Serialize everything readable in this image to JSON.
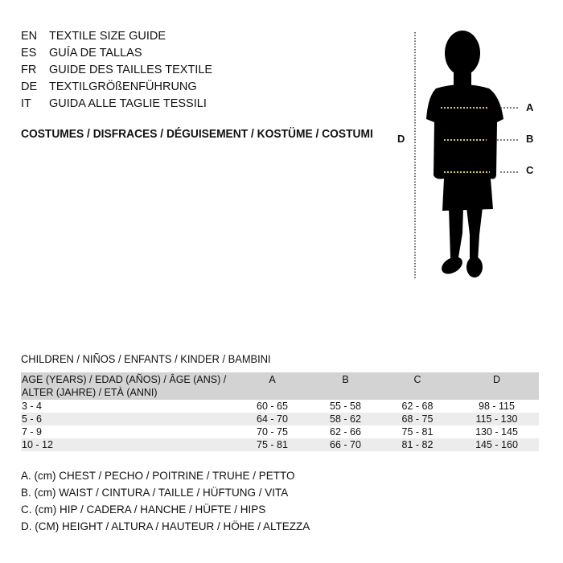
{
  "header": {
    "lines": [
      {
        "lang": "EN",
        "title": "TEXTILE SIZE GUIDE"
      },
      {
        "lang": "ES",
        "title": "GUÍA DE TALLAS"
      },
      {
        "lang": "FR",
        "title": "GUIDE DES TAILLES TEXTILE"
      },
      {
        "lang": "DE",
        "title": "TEXTILGRÖßENFÜHRUNG"
      },
      {
        "lang": "IT",
        "title": "GUIDA ALLE TAGLIE TESSILI"
      }
    ],
    "category": "COSTUMES / DISFRACES / DÉGUISEMENT / KOSTÜME / COSTUMI"
  },
  "figure": {
    "labels": {
      "a": "A",
      "b": "B",
      "c": "C",
      "d": "D"
    },
    "measure_color": "#e8d200"
  },
  "table": {
    "title": "CHILDREN / NIÑOS / ENFANTS / KINDER / BAMBINI",
    "header": {
      "age_line1": "AGE (YEARS) / EDAD (AÑOS) / ÂGE (ANS) /",
      "age_line2": "ALTER (JAHRE) / ETÀ (ANNI)",
      "a": "A",
      "b": "B",
      "c": "C",
      "d": "D"
    },
    "rows": [
      {
        "age": "3 - 4",
        "a": "60 - 65",
        "b": "55 - 58",
        "c": "62 - 68",
        "d": "98 - 115"
      },
      {
        "age": "5 - 6",
        "a": "64 - 70",
        "b": "58 - 62",
        "c": "68 - 75",
        "d": "115 - 130"
      },
      {
        "age": "7 - 9",
        "a": "70 - 75",
        "b": "62 - 66",
        "c": "75 - 81",
        "d": "130 - 145"
      },
      {
        "age": "10 - 12",
        "a": "75 - 81",
        "b": "66 - 70",
        "c": "81 - 82",
        "d": "145 - 160"
      }
    ]
  },
  "legend": [
    "A. (cm) CHEST / PECHO / POITRINE / TRUHE / PETTO",
    "B. (cm) WAIST / CINTURA / TAILLE / HÜFTUNG / VITA",
    "C. (cm) HIP / CADERA / HANCHE / HÜFTE / HIPS",
    "D. (CM) HEIGHT / ALTURA / HAUTEUR / HÖHE / ALTEZZA"
  ]
}
